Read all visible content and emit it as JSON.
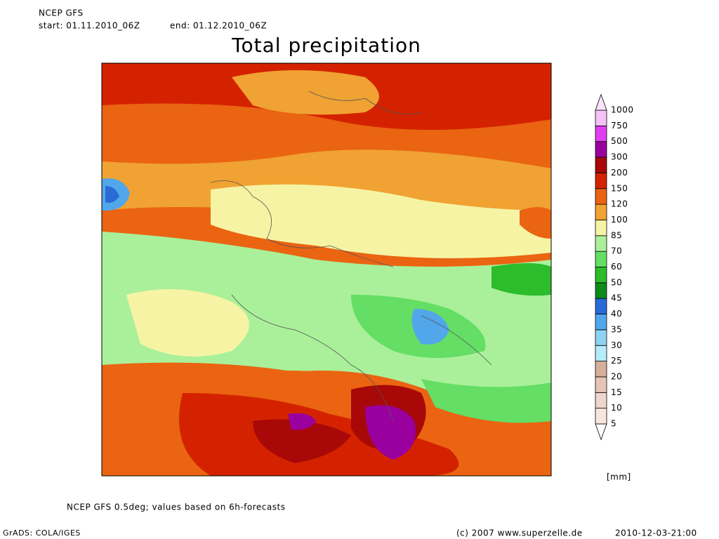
{
  "header": {
    "model": "NCEP GFS",
    "start": "start: 01.11.2010_06Z",
    "end": "end: 01.12.2010_06Z"
  },
  "title": "Total precipitation",
  "colorbar": {
    "unit": "[mm]",
    "levels": [
      {
        "value": 5,
        "color": "#f6e6dc"
      },
      {
        "value": 10,
        "color": "#efd6cc"
      },
      {
        "value": 15,
        "color": "#e6c4b6"
      },
      {
        "value": 20,
        "color": "#d6ae9c"
      },
      {
        "value": 25,
        "color": "#b4ecfa"
      },
      {
        "value": 30,
        "color": "#8ed2f2"
      },
      {
        "value": 35,
        "color": "#52a6ea"
      },
      {
        "value": 40,
        "color": "#2a6ad6"
      },
      {
        "value": 45,
        "color": "#0c8c1a"
      },
      {
        "value": 50,
        "color": "#2cbc2c"
      },
      {
        "value": 60,
        "color": "#64de64"
      },
      {
        "value": 70,
        "color": "#aaf09a"
      },
      {
        "value": 85,
        "color": "#f6f4a4"
      },
      {
        "value": 100,
        "color": "#f0a232"
      },
      {
        "value": 120,
        "color": "#ea6412"
      },
      {
        "value": 150,
        "color": "#d42200"
      },
      {
        "value": 200,
        "color": "#a80808"
      },
      {
        "value": 300,
        "color": "#9a009e"
      },
      {
        "value": 500,
        "color": "#e03ef0"
      },
      {
        "value": 750,
        "color": "#f6c2f6"
      },
      {
        "value": 1000,
        "color": "#fbe4fb"
      }
    ]
  },
  "footer": {
    "note": "NCEP GFS 0.5deg; values based on 6h-forecasts",
    "software": "GrADS: COLA/IGES",
    "copyright": "(c) 2007 www.superzelle.de",
    "timestamp": "2010-12-03-21:00"
  }
}
